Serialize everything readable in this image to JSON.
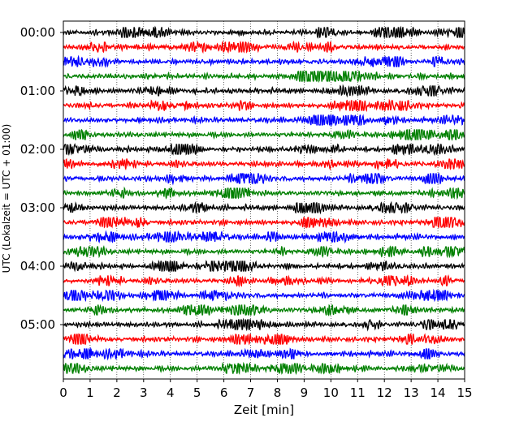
{
  "chart_data": {
    "type": "line",
    "title": "",
    "xlabel": "Zeit  [min]",
    "ylabel": "UTC (Lokalzeit = UTC + 01:00)",
    "xlim": [
      0,
      15
    ],
    "x_ticks": [
      "0",
      "1",
      "2",
      "3",
      "4",
      "5",
      "6",
      "7",
      "8",
      "9",
      "10",
      "11",
      "12",
      "13",
      "14",
      "15"
    ],
    "y_ticks": [
      {
        "label": "00:00",
        "trace_index": 0
      },
      {
        "label": "01:00",
        "trace_index": 4
      },
      {
        "label": "02:00",
        "trace_index": 8
      },
      {
        "label": "03:00",
        "trace_index": 12
      },
      {
        "label": "04:00",
        "trace_index": 16
      },
      {
        "label": "05:00",
        "trace_index": 20
      }
    ],
    "grid": "vertical dotted",
    "trace_minutes": 15,
    "trace_colors": [
      "#000000",
      "#ff0000",
      "#0000ff",
      "#008000"
    ],
    "series": [
      {
        "start": "00:00",
        "color": "#000000"
      },
      {
        "start": "00:15",
        "color": "#ff0000"
      },
      {
        "start": "00:30",
        "color": "#0000ff"
      },
      {
        "start": "00:45",
        "color": "#008000"
      },
      {
        "start": "01:00",
        "color": "#000000"
      },
      {
        "start": "01:15",
        "color": "#ff0000"
      },
      {
        "start": "01:30",
        "color": "#0000ff"
      },
      {
        "start": "01:45",
        "color": "#008000"
      },
      {
        "start": "02:00",
        "color": "#000000"
      },
      {
        "start": "02:15",
        "color": "#ff0000"
      },
      {
        "start": "02:30",
        "color": "#0000ff"
      },
      {
        "start": "02:45",
        "color": "#008000"
      },
      {
        "start": "03:00",
        "color": "#000000"
      },
      {
        "start": "03:15",
        "color": "#ff0000"
      },
      {
        "start": "03:30",
        "color": "#0000ff"
      },
      {
        "start": "03:45",
        "color": "#008000"
      },
      {
        "start": "04:00",
        "color": "#000000"
      },
      {
        "start": "04:15",
        "color": "#ff0000"
      },
      {
        "start": "04:30",
        "color": "#0000ff"
      },
      {
        "start": "04:45",
        "color": "#008000"
      },
      {
        "start": "05:00",
        "color": "#000000"
      },
      {
        "start": "05:15",
        "color": "#ff0000"
      },
      {
        "start": "05:30",
        "color": "#0000ff"
      },
      {
        "start": "05:45",
        "color": "#008000"
      }
    ]
  }
}
